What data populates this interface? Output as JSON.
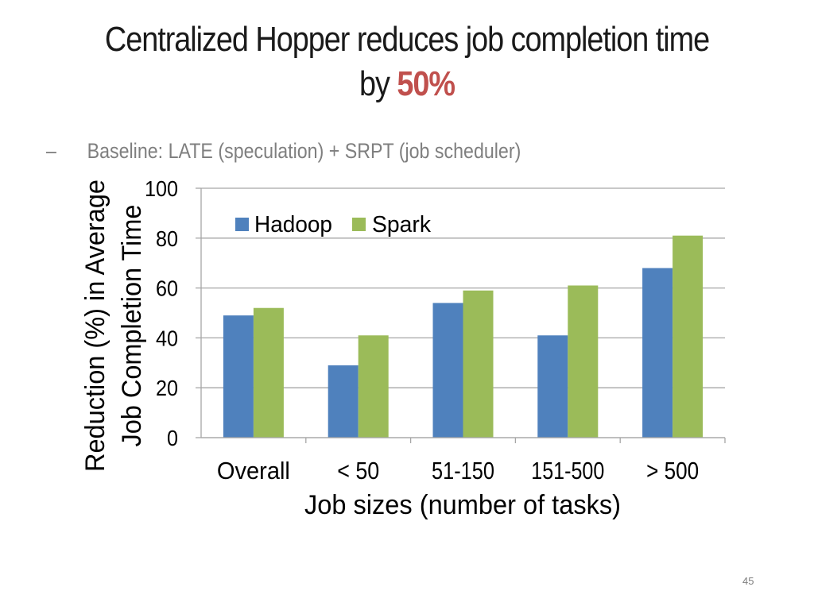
{
  "slide": {
    "title_line1": "Centralized Hopper reduces job completion time",
    "title_line2_prefix": "by",
    "title_highlight": "50%",
    "bullet_marker": "–",
    "bullet_text": "Baseline: LATE (speculation) + SRPT (job scheduler)",
    "page_number": "45",
    "highlight_color": "#c0504d"
  },
  "chart_data": {
    "type": "bar",
    "categories": [
      "Overall",
      "< 50",
      "51-150",
      "151-500",
      "> 500"
    ],
    "series": [
      {
        "name": "Hadoop",
        "values": [
          49,
          29,
          54,
          41,
          68
        ],
        "color": "#4f81bd"
      },
      {
        "name": "Spark",
        "values": [
          52,
          41,
          59,
          61,
          81
        ],
        "color": "#9bbb59"
      }
    ],
    "title": "",
    "xlabel": "Job sizes (number of tasks)",
    "ylabel_lines": [
      "Reduction (%) in Average",
      "Job Completion Time"
    ],
    "ylim": [
      0,
      100
    ],
    "yticks": [
      0,
      20,
      40,
      60,
      80,
      100
    ],
    "grid": true,
    "legend_position": "top-left"
  }
}
